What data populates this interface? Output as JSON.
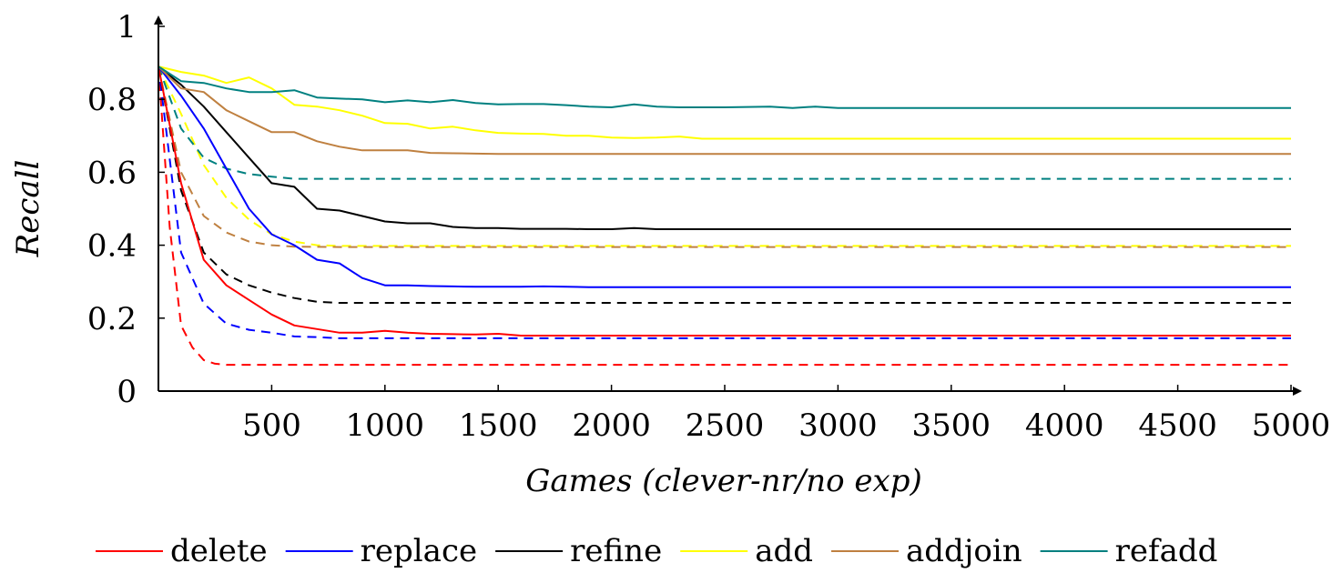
{
  "chart_data": {
    "type": "line",
    "title": "",
    "xlabel": "Games (clever-nr/no exp)",
    "ylabel": "Recall",
    "xlim": [
      0,
      5000
    ],
    "ylim": [
      0,
      1
    ],
    "x_ticks": [
      500,
      1000,
      1500,
      2000,
      2500,
      3000,
      3500,
      4000,
      4500,
      5000
    ],
    "y_ticks": [
      0,
      0.2,
      0.4,
      0.6,
      0.8,
      1
    ],
    "y_tick_labels": [
      "0",
      "0.2",
      "0.4",
      "0.6",
      "0.8",
      "1"
    ],
    "grid": false,
    "legend_position": "bottom",
    "series": [
      {
        "name": "delete",
        "color": "#ff0000",
        "dash": false,
        "x": [
          0,
          100,
          200,
          300,
          400,
          500,
          600,
          700,
          800,
          900,
          1000,
          1100,
          1200,
          1300,
          1400,
          1500,
          1600,
          1700,
          1800,
          1900,
          2000,
          5000
        ],
        "y": [
          0.89,
          0.57,
          0.36,
          0.29,
          0.25,
          0.21,
          0.18,
          0.17,
          0.16,
          0.16,
          0.165,
          0.16,
          0.157,
          0.156,
          0.155,
          0.157,
          0.152,
          0.152,
          0.152,
          0.152,
          0.152,
          0.152
        ]
      },
      {
        "name": "replace",
        "color": "#0000ff",
        "dash": false,
        "x": [
          0,
          100,
          200,
          300,
          400,
          500,
          600,
          700,
          800,
          900,
          1000,
          1100,
          1200,
          1300,
          1400,
          1500,
          1600,
          1700,
          1800,
          1900,
          2000,
          5000
        ],
        "y": [
          0.89,
          0.81,
          0.72,
          0.61,
          0.5,
          0.43,
          0.4,
          0.36,
          0.35,
          0.31,
          0.29,
          0.29,
          0.288,
          0.287,
          0.286,
          0.286,
          0.286,
          0.287,
          0.286,
          0.285,
          0.285,
          0.285
        ]
      },
      {
        "name": "refine",
        "color": "#000000",
        "dash": false,
        "x": [
          0,
          100,
          200,
          300,
          400,
          500,
          600,
          700,
          800,
          900,
          1000,
          1100,
          1200,
          1300,
          1400,
          1500,
          1600,
          1700,
          1800,
          1900,
          2000,
          2100,
          2200,
          5000
        ],
        "y": [
          0.89,
          0.84,
          0.78,
          0.71,
          0.64,
          0.57,
          0.56,
          0.5,
          0.495,
          0.48,
          0.465,
          0.46,
          0.46,
          0.45,
          0.447,
          0.447,
          0.445,
          0.445,
          0.445,
          0.444,
          0.444,
          0.447,
          0.444,
          0.444
        ]
      },
      {
        "name": "add",
        "color": "#ffff00",
        "dash": false,
        "x": [
          0,
          100,
          200,
          300,
          400,
          500,
          600,
          700,
          800,
          900,
          1000,
          1100,
          1200,
          1300,
          1400,
          1500,
          1600,
          1700,
          1800,
          1900,
          2000,
          2100,
          2200,
          2300,
          2400,
          5000
        ],
        "y": [
          0.89,
          0.875,
          0.865,
          0.845,
          0.86,
          0.83,
          0.785,
          0.78,
          0.77,
          0.755,
          0.735,
          0.733,
          0.72,
          0.725,
          0.715,
          0.708,
          0.706,
          0.705,
          0.7,
          0.7,
          0.695,
          0.694,
          0.695,
          0.698,
          0.692,
          0.692
        ]
      },
      {
        "name": "addjoin",
        "color": "#bf8040",
        "dash": false,
        "x": [
          0,
          100,
          200,
          300,
          400,
          500,
          600,
          700,
          800,
          900,
          1000,
          1100,
          1200,
          1300,
          1400,
          1500,
          5000
        ],
        "y": [
          0.89,
          0.83,
          0.82,
          0.77,
          0.74,
          0.71,
          0.71,
          0.685,
          0.67,
          0.66,
          0.66,
          0.66,
          0.653,
          0.652,
          0.651,
          0.65,
          0.65
        ]
      },
      {
        "name": "refadd",
        "color": "#008080",
        "dash": false,
        "x": [
          0,
          100,
          200,
          300,
          400,
          500,
          600,
          700,
          800,
          900,
          1000,
          1100,
          1200,
          1300,
          1400,
          1500,
          1600,
          1700,
          1800,
          1900,
          2000,
          2100,
          2200,
          2300,
          2500,
          2700,
          2800,
          2900,
          3000,
          5000
        ],
        "y": [
          0.89,
          0.85,
          0.845,
          0.83,
          0.82,
          0.82,
          0.825,
          0.805,
          0.802,
          0.8,
          0.792,
          0.797,
          0.792,
          0.798,
          0.79,
          0.786,
          0.787,
          0.787,
          0.784,
          0.78,
          0.778,
          0.786,
          0.78,
          0.778,
          0.778,
          0.78,
          0.776,
          0.78,
          0.776,
          0.776
        ]
      },
      {
        "color": "#ff0000",
        "dash": true,
        "x": [
          0,
          50,
          100,
          150,
          200,
          250,
          300,
          350,
          400,
          5000
        ],
        "y": [
          0.89,
          0.45,
          0.18,
          0.12,
          0.085,
          0.075,
          0.072,
          0.072,
          0.072,
          0.072
        ]
      },
      {
        "color": "#0000ff",
        "dash": true,
        "x": [
          0,
          100,
          200,
          300,
          400,
          500,
          600,
          700,
          800,
          1000,
          5000
        ],
        "y": [
          0.89,
          0.38,
          0.24,
          0.185,
          0.168,
          0.16,
          0.15,
          0.148,
          0.145,
          0.145,
          0.145
        ]
      },
      {
        "color": "#000000",
        "dash": true,
        "x": [
          0,
          100,
          200,
          300,
          400,
          500,
          600,
          700,
          800,
          1000,
          5000
        ],
        "y": [
          0.89,
          0.55,
          0.38,
          0.32,
          0.29,
          0.27,
          0.255,
          0.245,
          0.242,
          0.242,
          0.242
        ]
      },
      {
        "color": "#ffff00",
        "dash": true,
        "x": [
          0,
          100,
          200,
          300,
          400,
          500,
          600,
          700,
          800,
          5000
        ],
        "y": [
          0.89,
          0.76,
          0.62,
          0.53,
          0.47,
          0.43,
          0.41,
          0.4,
          0.398,
          0.398
        ]
      },
      {
        "color": "#bf8040",
        "dash": true,
        "x": [
          0,
          100,
          200,
          300,
          400,
          500,
          600,
          800,
          5000
        ],
        "y": [
          0.89,
          0.6,
          0.48,
          0.435,
          0.41,
          0.4,
          0.396,
          0.395,
          0.395
        ]
      },
      {
        "color": "#008080",
        "dash": true,
        "x": [
          0,
          100,
          200,
          300,
          400,
          500,
          600,
          800,
          5000
        ],
        "y": [
          0.89,
          0.72,
          0.64,
          0.61,
          0.595,
          0.588,
          0.582,
          0.582,
          0.582
        ]
      }
    ]
  }
}
